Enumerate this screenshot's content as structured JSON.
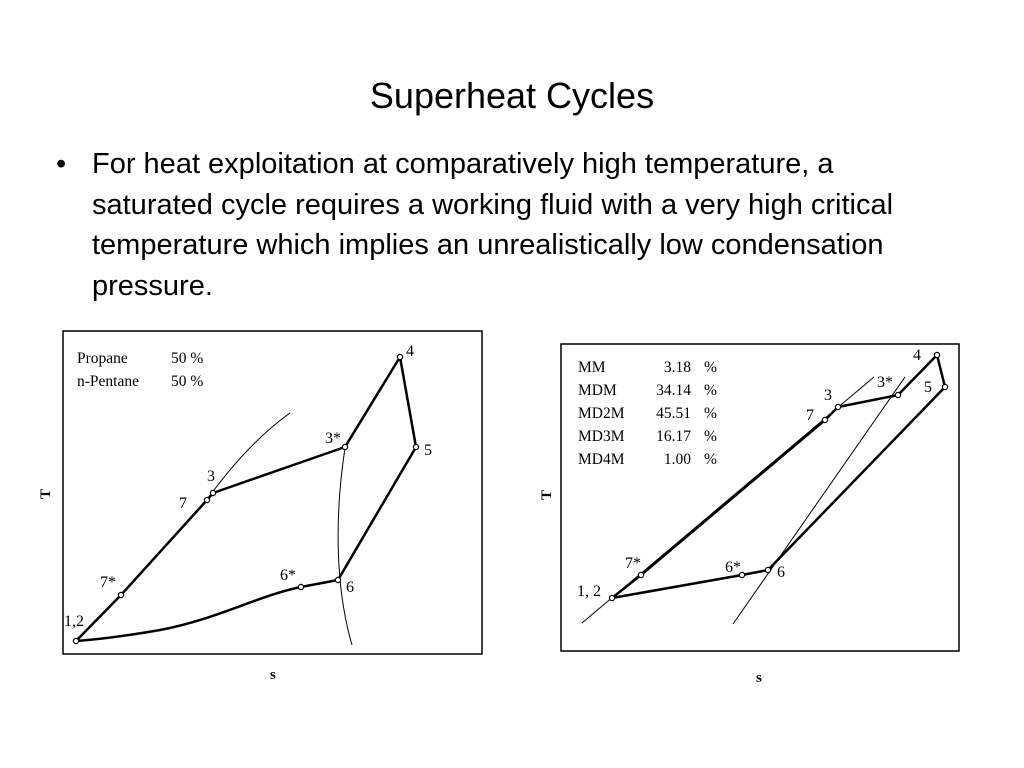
{
  "slide": {
    "title": "Superheat Cycles",
    "bullet_marker": "•",
    "bullet_text": "For heat exploitation at comparatively high temperature, a saturated cycle requires a working fluid with a very high critical temperature which implies an unrealistically low condensation pressure."
  },
  "left_diagram": {
    "legend": [
      {
        "name": "Propane",
        "value": "50 %"
      },
      {
        "name": "n-Pentane",
        "value": "50 %"
      }
    ],
    "point_labels": {
      "p12": "1,2",
      "p7s": "7*",
      "p7": "7",
      "p3": "3",
      "p3s": "3*",
      "p4": "4",
      "p5": "5",
      "p6": "6",
      "p6s": "6*"
    },
    "xlabel": "s",
    "ylabel": "T"
  },
  "right_diagram": {
    "legend": [
      {
        "name": "MM",
        "value": "3.18",
        "unit": "%"
      },
      {
        "name": "MDM",
        "value": "34.14",
        "unit": "%"
      },
      {
        "name": "MD2M",
        "value": "45.51",
        "unit": "%"
      },
      {
        "name": "MD3M",
        "value": "16.17",
        "unit": "%"
      },
      {
        "name": "MD4M",
        "value": "1.00",
        "unit": "%"
      }
    ],
    "point_labels": {
      "p12": "1, 2",
      "p7s": "7*",
      "p7": "7",
      "p3": "3",
      "p3s": "3*",
      "p4": "4",
      "p5": "5",
      "p6": "6",
      "p6s": "6*"
    },
    "xlabel": "s",
    "ylabel": "T"
  }
}
